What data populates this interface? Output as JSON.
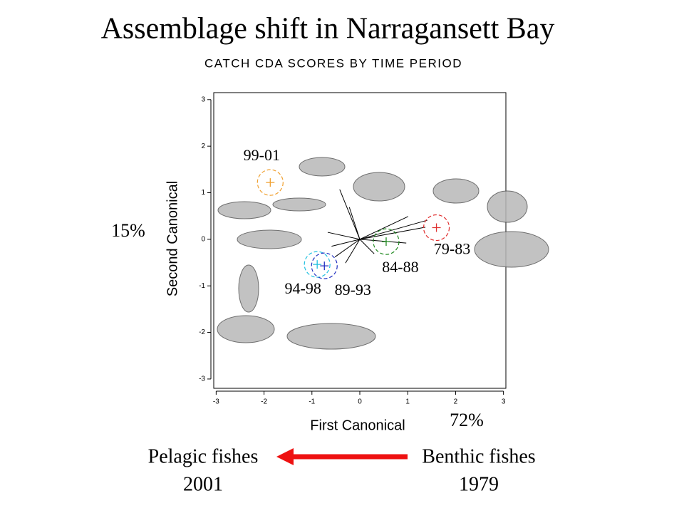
{
  "chart_data": {
    "type": "scatter",
    "title": "Assemblage shift in Narragansett Bay",
    "subtitle": "CATCH CDA SCORES BY TIME PERIOD",
    "xlabel": "First Canonical",
    "ylabel": "Second Canonical",
    "xlim": [
      -3.05,
      3.05
    ],
    "ylim": [
      -3.2,
      3.15
    ],
    "xticks": [
      -3,
      -2,
      -1,
      0,
      1,
      2,
      3
    ],
    "yticks": [
      -3,
      -2,
      -1,
      0,
      1,
      2,
      3
    ],
    "point_labels": [
      "99-01",
      "79-83",
      "84-88",
      "94-98",
      "89-93"
    ],
    "x": [
      -1.87,
      1.6,
      0.55,
      -0.89,
      -0.74
    ],
    "y": [
      1.22,
      0.25,
      -0.05,
      -0.54,
      -0.57
    ],
    "colors": [
      "#f0a030",
      "#e03030",
      "#208a20",
      "#20c0e0",
      "#2030c0"
    ],
    "vectors": {
      "x": [
        -0.42,
        -0.22,
        -0.67,
        -0.59,
        -0.52,
        -0.3,
        1.01,
        1.41,
        1.37,
        0.97,
        0.3
      ],
      "y": [
        1.07,
        0.69,
        0.15,
        -0.15,
        -0.38,
        -0.51,
        0.49,
        0.41,
        0.26,
        -0.08,
        -0.31
      ]
    },
    "y_variance": "15%",
    "x_variance": "72%",
    "shift": {
      "from_label": "Benthic fishes",
      "from_year": "1979",
      "to_label": "Pelagic fishes",
      "to_year": "2001"
    }
  }
}
